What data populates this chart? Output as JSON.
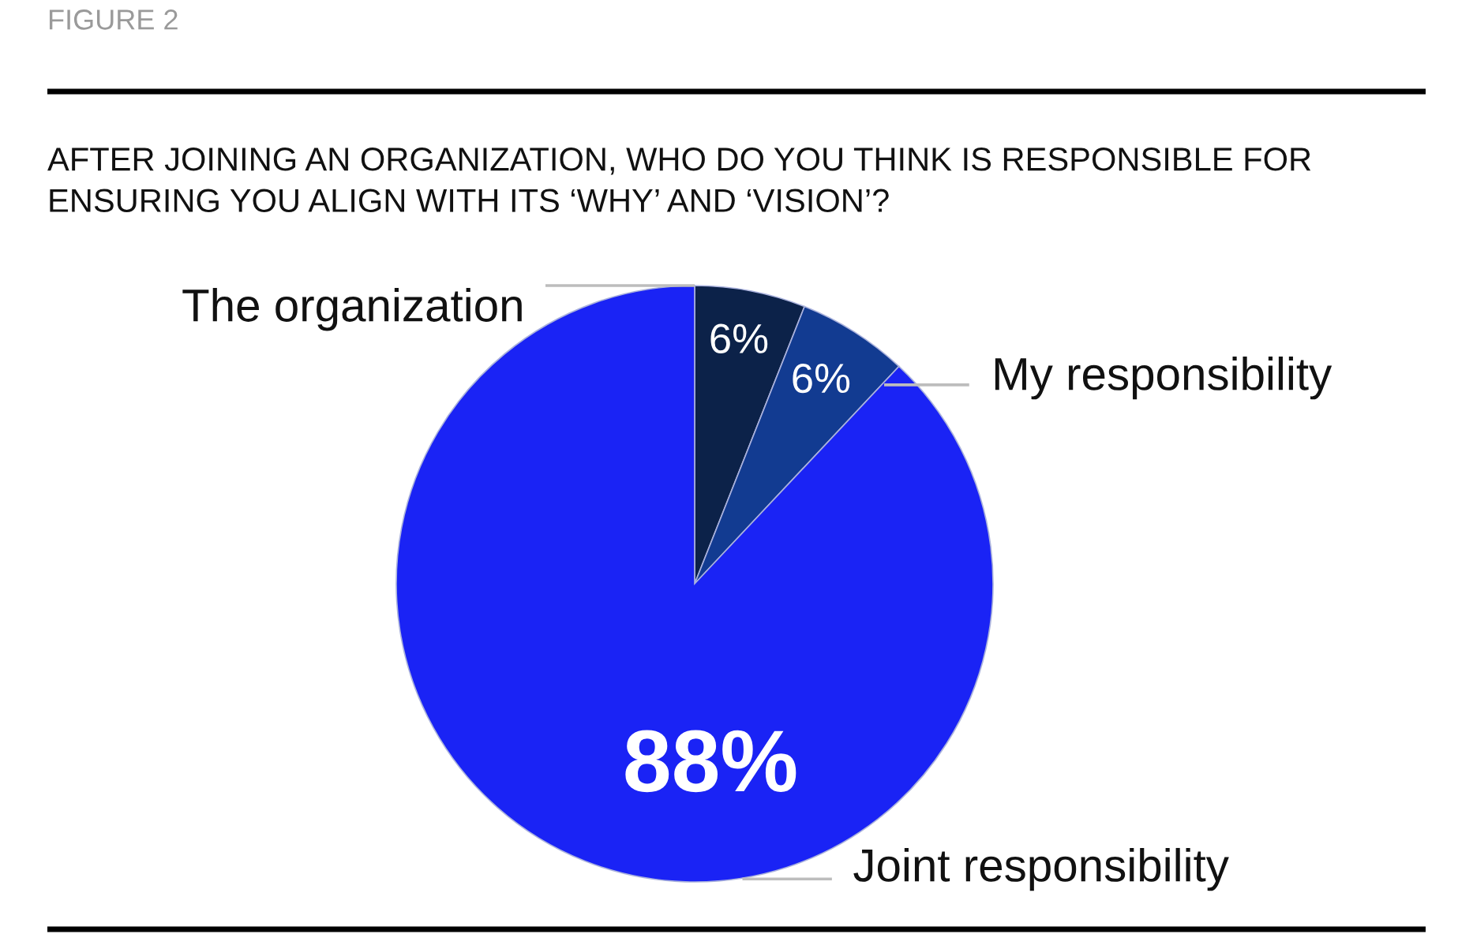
{
  "chart_data": {
    "type": "pie",
    "title": "FIGURE 2",
    "subtitle": "AFTER JOINING AN ORGANIZATION, WHO DO YOU THINK IS RESPONSIBLE FOR\nENSURING YOU ALIGN WITH ITS ‘WHY’ AND ‘VISION’?",
    "categories": [
      "The organization",
      "My responsibility",
      "Joint responsibility"
    ],
    "values": [
      6,
      6,
      88
    ],
    "colors": [
      "#0c2249",
      "#123b91",
      "#1a23f5"
    ],
    "value_labels": [
      "6%",
      "6%",
      "88%"
    ]
  }
}
